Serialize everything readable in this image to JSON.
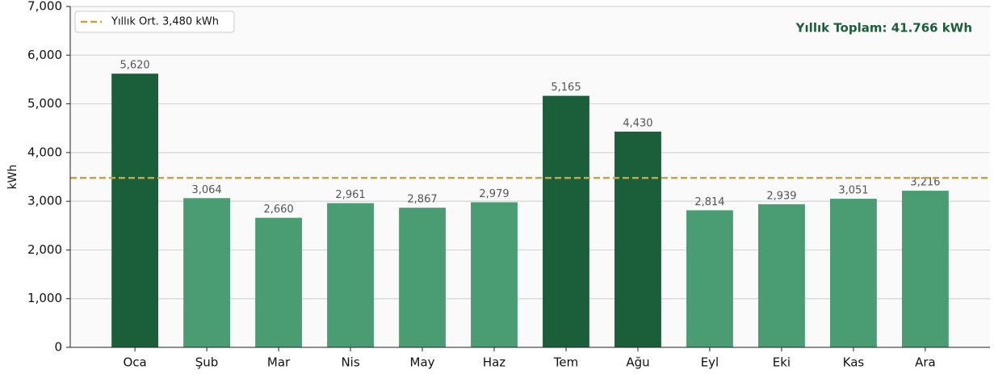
{
  "chart_data": {
    "type": "bar",
    "categories": [
      "Oca",
      "Şub",
      "Mar",
      "Nis",
      "May",
      "Haz",
      "Tem",
      "Ağu",
      "Eyl",
      "Eki",
      "Kas",
      "Ara"
    ],
    "values": [
      5620,
      3064,
      2660,
      2961,
      2867,
      2979,
      5165,
      4430,
      2814,
      2939,
      3051,
      3216
    ],
    "value_labels": [
      "5,620",
      "3,064",
      "2,660",
      "2,961",
      "2,867",
      "2,979",
      "5,165",
      "4,430",
      "2,814",
      "2,939",
      "3,051",
      "3,216"
    ],
    "colors": [
      "#1b5e3a",
      "#4a9c72",
      "#4a9c72",
      "#4a9c72",
      "#4a9c72",
      "#4a9c72",
      "#1b5e3a",
      "#1b5e3a",
      "#4a9c72",
      "#4a9c72",
      "#4a9c72",
      "#4a9c72"
    ],
    "ylabel": "kWh",
    "ylim": [
      0,
      7000
    ],
    "yticks": [
      0,
      {
        "value": 1000,
        "label": "1,000"
      },
      {
        "value": 2000,
        "label": "2,000"
      },
      {
        "value": 3000,
        "label": "3,000"
      },
      {
        "value": 4000,
        "label": "4,000"
      },
      {
        "value": 5000,
        "label": "5,000"
      },
      {
        "value": 6000,
        "label": "6,000"
      },
      {
        "value": 7000,
        "label": "7,000"
      }
    ],
    "grid": true,
    "average": {
      "value": 3480,
      "label": "Yıllık Ort. 3,480 kWh",
      "color": "#c9a43f"
    },
    "legend": "upper left",
    "annotation": "Yıllık Toplam: 41.766 kWh"
  }
}
